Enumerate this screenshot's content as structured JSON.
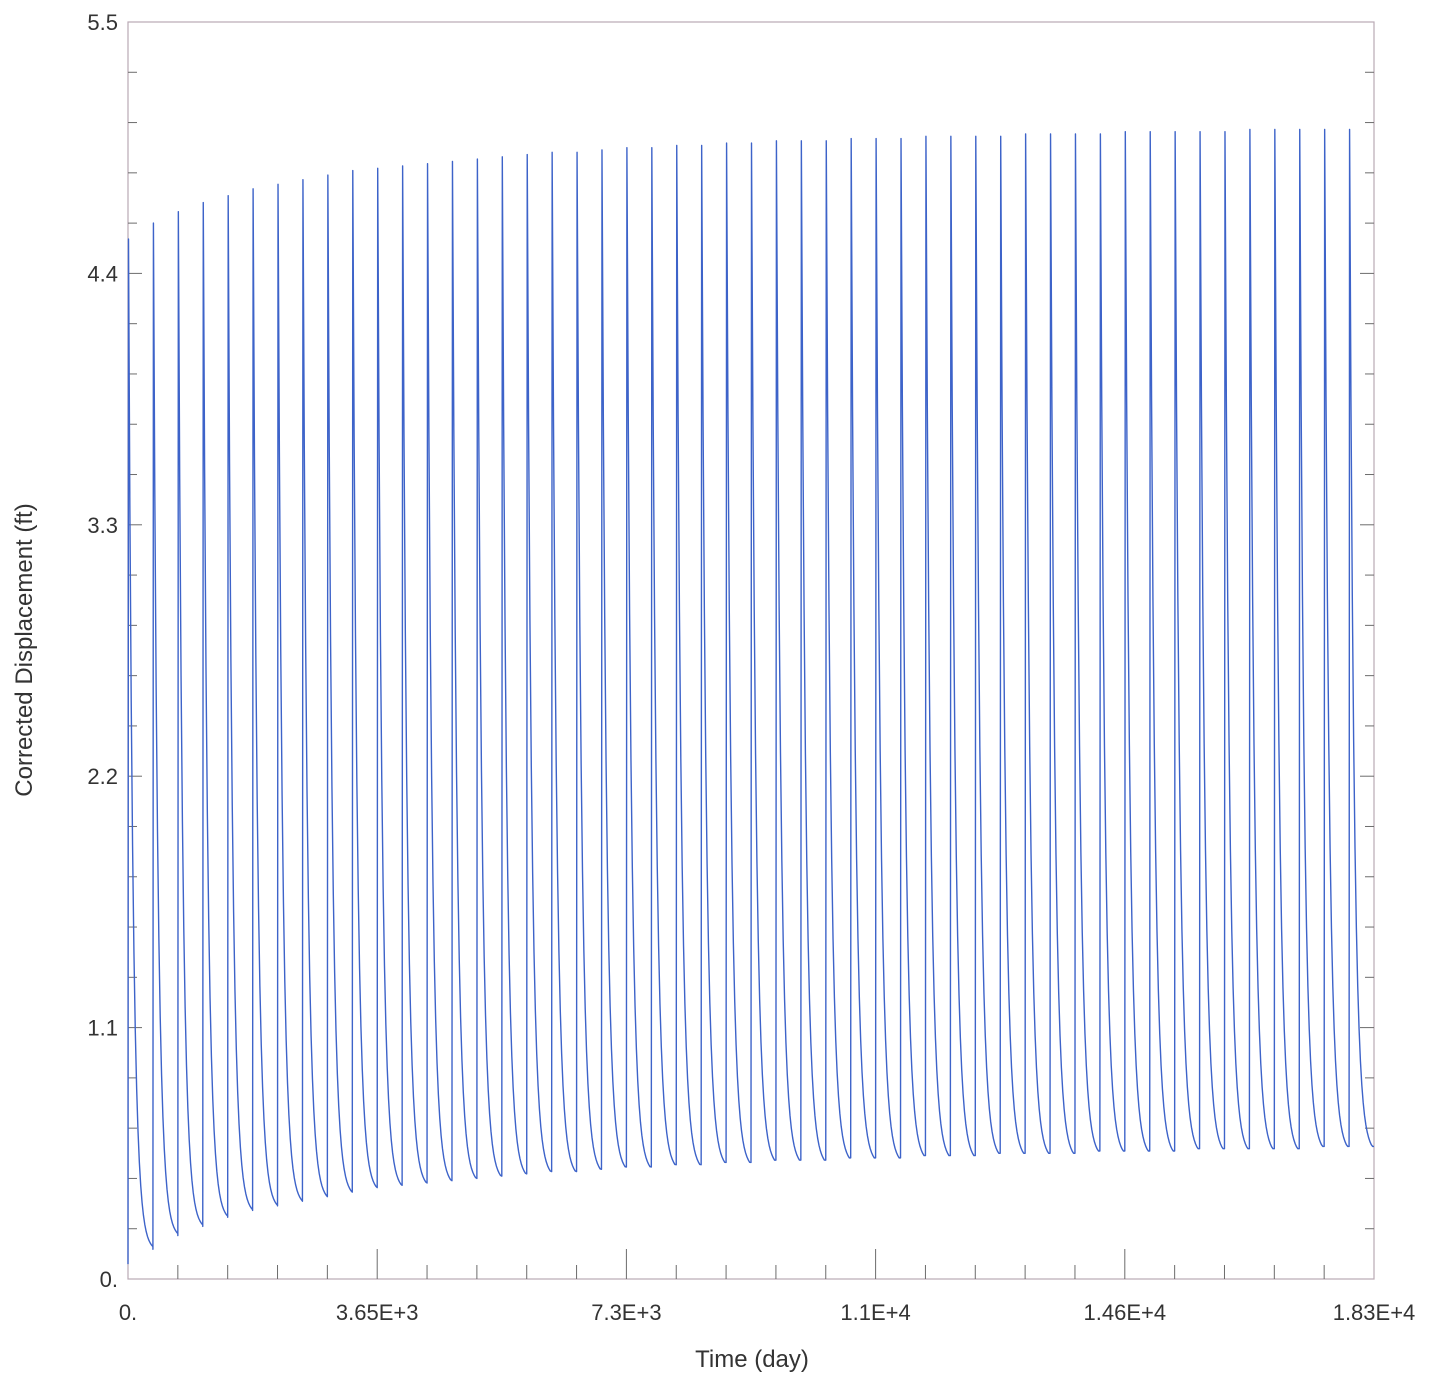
{
  "chart_data": {
    "type": "line",
    "title": "",
    "xlabel": "Time (day)",
    "ylabel": "Corrected Displacement (ft)",
    "xlim": [
      0,
      18250
    ],
    "ylim": [
      0,
      5.5
    ],
    "x_ticks": [
      0,
      3650,
      7300,
      10950,
      14600,
      18250
    ],
    "x_tick_labels": [
      "0.",
      "3.65E+3",
      "7.3E+3",
      "1.1E+4",
      "1.46E+4",
      "1.83E+4"
    ],
    "y_ticks": [
      0,
      1.1,
      2.2,
      3.3,
      4.4,
      5.5
    ],
    "y_tick_labels": [
      "0.",
      "1.1",
      "2.2",
      "3.3",
      "4.4",
      "5.5"
    ],
    "grid": false,
    "line_color": "#3d63c9",
    "series": [
      {
        "cycle_period_days": 365,
        "cycle_count": 50,
        "peaks": [
          4.55,
          4.62,
          4.67,
          4.71,
          4.74,
          4.77,
          4.79,
          4.81,
          4.83,
          4.85,
          4.86,
          4.87,
          4.88,
          4.89,
          4.9,
          4.91,
          4.92,
          4.93,
          4.93,
          4.94,
          4.95,
          4.95,
          4.96,
          4.96,
          4.97,
          4.97,
          4.98,
          4.98,
          4.98,
          4.99,
          4.99,
          4.99,
          5.0,
          5.0,
          5.0,
          5.0,
          5.01,
          5.01,
          5.01,
          5.01,
          5.02,
          5.02,
          5.02,
          5.02,
          5.02,
          5.03,
          5.03,
          5.03,
          5.03,
          5.03
        ],
        "troughs": [
          0.13,
          0.19,
          0.23,
          0.27,
          0.3,
          0.32,
          0.34,
          0.36,
          0.38,
          0.4,
          0.41,
          0.42,
          0.43,
          0.44,
          0.45,
          0.46,
          0.47,
          0.47,
          0.48,
          0.49,
          0.49,
          0.5,
          0.5,
          0.51,
          0.51,
          0.52,
          0.52,
          0.52,
          0.53,
          0.53,
          0.53,
          0.54,
          0.54,
          0.54,
          0.55,
          0.55,
          0.55,
          0.55,
          0.56,
          0.56,
          0.56,
          0.56,
          0.57,
          0.57,
          0.57,
          0.57,
          0.57,
          0.58,
          0.58,
          0.58
        ],
        "final_value": 0.58
      }
    ]
  }
}
